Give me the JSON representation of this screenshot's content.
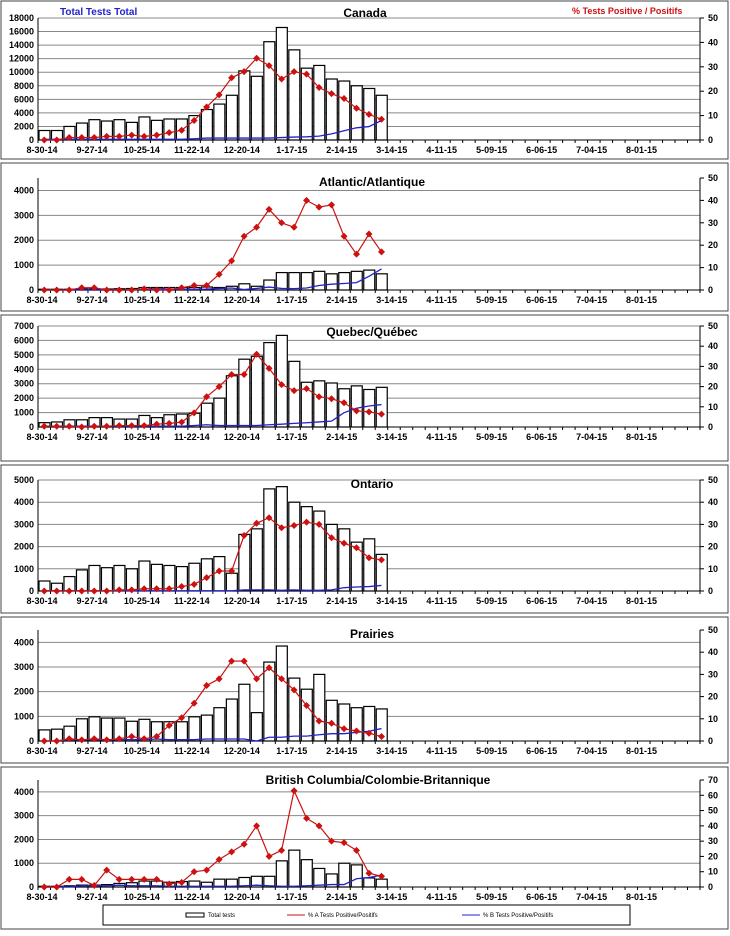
{
  "header": {
    "left_axis_label": "Total Tests Total",
    "right_axis_label": "% Tests Positive / Positifs"
  },
  "colors": {
    "bars": "#ffffff",
    "pct_a": "#cc1111",
    "pct_b": "#2222cc"
  },
  "legend": {
    "total": "Total tests",
    "pct_a": "% A Tests Positive/Positifs",
    "pct_b": "% B Tests Positive/Positifs"
  },
  "chart_data": [
    {
      "type": "bar+line",
      "title": "Canada",
      "x_tick_labels": [
        "8-30-14",
        "9-27-14",
        "10-25-14",
        "11-22-14",
        "12-20-14",
        "1-17-15",
        "2-14-15",
        "3-14-15",
        "4-11-15",
        "5-09-15",
        "6-06-15",
        "7-04-15",
        "8-01-15"
      ],
      "weeks_total": 53,
      "ylim_left": [
        0,
        18000
      ],
      "yticks_left": [
        0,
        2000,
        4000,
        6000,
        8000,
        10000,
        12000,
        14000,
        16000,
        18000
      ],
      "ylim_right": [
        0,
        50
      ],
      "yticks_right": [
        0,
        10,
        20,
        30,
        40,
        50
      ],
      "total_tests": [
        1400,
        1400,
        2000,
        2500,
        3000,
        2800,
        3000,
        2600,
        3400,
        2900,
        3100,
        3100,
        3600,
        4500,
        5300,
        6600,
        10200,
        9400,
        14500,
        16600,
        13300,
        10600,
        11000,
        9000,
        8700,
        8000,
        7600,
        6600
      ],
      "pct_a": [
        0,
        0,
        1,
        1,
        1,
        1.5,
        1.5,
        2,
        1.5,
        2,
        3,
        4,
        8,
        13.5,
        18.5,
        25.5,
        28,
        33.5,
        30.5,
        25,
        28,
        27,
        21.5,
        19,
        17,
        13,
        10.5,
        8.5
      ],
      "pct_b": [
        0.3,
        0.3,
        0.3,
        0.3,
        0.3,
        0.3,
        0.3,
        0.3,
        0.3,
        0.3,
        0.3,
        0.3,
        0.5,
        0.8,
        0.8,
        0.8,
        0.8,
        0.8,
        0.8,
        1,
        1.2,
        1.3,
        1.6,
        2.5,
        3.8,
        5,
        5.5,
        8
      ]
    },
    {
      "type": "bar+line",
      "title": "Atlantic/Atlantique",
      "x_tick_labels": [
        "8-30-14",
        "9-27-14",
        "10-25-14",
        "11-22-14",
        "12-20-14",
        "1-17-15",
        "2-14-15",
        "3-14-15",
        "4-11-15",
        "5-09-15",
        "6-06-15",
        "7-04-15",
        "8-01-15"
      ],
      "weeks_total": 53,
      "ylim_left": [
        0,
        4500
      ],
      "yticks_left": [
        0,
        1000,
        2000,
        3000,
        4000
      ],
      "ylim_right": [
        0,
        50
      ],
      "yticks_right": [
        0,
        10,
        20,
        30,
        40,
        50
      ],
      "total_tests": [
        30,
        30,
        30,
        40,
        40,
        40,
        50,
        60,
        100,
        100,
        100,
        100,
        100,
        120,
        100,
        150,
        250,
        150,
        400,
        700,
        700,
        700,
        750,
        650,
        700,
        750,
        800,
        650
      ],
      "pct_a": [
        0,
        0,
        0,
        1,
        1,
        0,
        0,
        0,
        0.5,
        0,
        0,
        1,
        2,
        2,
        7,
        13,
        24,
        28,
        36,
        30,
        28,
        40,
        37,
        38,
        24,
        16,
        25,
        17
      ],
      "pct_b": [
        0,
        0,
        0,
        0,
        0,
        0,
        0,
        0,
        0.3,
        0.6,
        0.4,
        0.3,
        0.3,
        0.4,
        0.7,
        0.9,
        0.2,
        0.7,
        1.3,
        0.7,
        0.6,
        0.9,
        2,
        2.6,
        2.9,
        3.3,
        6.1,
        9.4
      ]
    },
    {
      "type": "bar+line",
      "title": "Quebec/Québec",
      "x_tick_labels": [
        "8-30-14",
        "9-27-14",
        "10-25-14",
        "11-22-14",
        "12-20-14",
        "1-17-15",
        "2-14-15",
        "3-14-15",
        "4-11-15",
        "5-09-15",
        "6-06-15",
        "7-04-15",
        "8-01-15"
      ],
      "weeks_total": 53,
      "ylim_left": [
        0,
        7000
      ],
      "yticks_left": [
        0,
        1000,
        2000,
        3000,
        4000,
        5000,
        6000,
        7000
      ],
      "ylim_right": [
        0,
        50
      ],
      "yticks_right": [
        0,
        10,
        20,
        30,
        40,
        50
      ],
      "total_tests": [
        300,
        350,
        500,
        500,
        650,
        650,
        550,
        550,
        800,
        650,
        850,
        900,
        950,
        1650,
        2000,
        3550,
        4700,
        4900,
        5850,
        6350,
        4550,
        3100,
        3200,
        3050,
        2650,
        2850,
        2600,
        2750
      ],
      "pct_a": [
        0.4,
        0.4,
        0.4,
        0,
        0.4,
        0.4,
        0.7,
        0.7,
        0.7,
        1.4,
        1.8,
        2.4,
        7,
        15,
        20,
        26,
        26,
        36,
        29,
        21,
        18,
        19,
        15,
        14,
        12,
        8,
        7.5,
        6.4
      ],
      "pct_b": [
        0.4,
        0.4,
        0.4,
        0.4,
        0.4,
        0.4,
        0.4,
        0.4,
        0.4,
        0.4,
        0.4,
        0.4,
        0.7,
        1.1,
        0.7,
        0.7,
        0.7,
        0.7,
        1.1,
        1.4,
        1.8,
        2.1,
        2.5,
        2.9,
        7.1,
        9.3,
        10.4,
        11.1
      ]
    },
    {
      "type": "bar+line",
      "title": "Ontario",
      "x_tick_labels": [
        "8-30-14",
        "9-27-14",
        "10-25-14",
        "11-22-14",
        "12-20-14",
        "1-17-15",
        "2-14-15",
        "3-14-15",
        "4-11-15",
        "5-09-15",
        "6-06-15",
        "7-04-15",
        "8-01-15"
      ],
      "weeks_total": 53,
      "ylim_left": [
        0,
        5000
      ],
      "yticks_left": [
        0,
        1000,
        2000,
        3000,
        4000,
        5000
      ],
      "ylim_right": [
        0,
        50
      ],
      "yticks_right": [
        0,
        10,
        20,
        30,
        40,
        50
      ],
      "total_tests": [
        450,
        350,
        650,
        950,
        1150,
        1050,
        1150,
        1000,
        1350,
        1200,
        1150,
        1100,
        1250,
        1450,
        1550,
        800,
        2550,
        2800,
        4600,
        4700,
        4000,
        3800,
        3600,
        3000,
        2800,
        2200,
        2350,
        1650
      ],
      "pct_a": [
        0,
        0,
        0,
        0,
        0,
        0,
        0.5,
        0.5,
        1,
        1,
        1,
        2,
        3,
        6,
        9,
        9,
        25,
        30.5,
        33,
        28.5,
        29.5,
        31,
        30,
        24,
        21.5,
        19.5,
        15,
        14
      ],
      "pct_b": [
        0.1,
        0.1,
        0.1,
        0.1,
        0.1,
        0.1,
        0.1,
        0.1,
        0.1,
        0.1,
        0.1,
        0.1,
        0.1,
        0.1,
        0.1,
        0.1,
        0.5,
        0.5,
        0.5,
        0.3,
        0.5,
        0.3,
        0.3,
        0.5,
        1.5,
        1.8,
        2,
        2.5
      ]
    },
    {
      "type": "bar+line",
      "title": "Prairies",
      "x_tick_labels": [
        "8-30-14",
        "9-27-14",
        "10-25-14",
        "11-22-14",
        "12-20-14",
        "1-17-15",
        "2-14-15",
        "3-14-15",
        "4-11-15",
        "5-09-15",
        "6-06-15",
        "7-04-15",
        "8-01-15"
      ],
      "weeks_total": 53,
      "ylim_left": [
        0,
        4500
      ],
      "yticks_left": [
        0,
        1000,
        2000,
        3000,
        4000
      ],
      "ylim_right": [
        0,
        50
      ],
      "yticks_right": [
        0,
        10,
        20,
        30,
        40,
        50
      ],
      "total_tests": [
        450,
        480,
        600,
        900,
        980,
        930,
        930,
        800,
        880,
        780,
        780,
        780,
        980,
        1050,
        1350,
        1700,
        2300,
        1150,
        3200,
        3850,
        2550,
        2100,
        2700,
        1650,
        1500,
        1350,
        1400,
        1300
      ],
      "pct_a": [
        0,
        0,
        1,
        0.5,
        1,
        0.5,
        1,
        2,
        1,
        2,
        7,
        10.5,
        17,
        25,
        28,
        36,
        36,
        28,
        33,
        28,
        23,
        16,
        9,
        8,
        5.5,
        4.5,
        3.5,
        2
      ],
      "pct_b": [
        0,
        0,
        0.6,
        0.6,
        0.6,
        0.6,
        0.6,
        0.6,
        0.6,
        0.9,
        0.6,
        0.6,
        0.6,
        0.9,
        0.9,
        0.9,
        0.9,
        0,
        1.7,
        1.7,
        2.2,
        2.2,
        2.8,
        3.3,
        3.3,
        3.9,
        4.4,
        5.6
      ]
    },
    {
      "type": "bar+line",
      "title": "British Columbia/Colombie-Britannique",
      "x_tick_labels": [
        "8-30-14",
        "9-27-14",
        "10-25-14",
        "11-22-14",
        "12-20-14",
        "1-17-15",
        "2-14-15",
        "3-14-15",
        "4-11-15",
        "5-09-15",
        "6-06-15",
        "7-04-15",
        "8-01-15"
      ],
      "weeks_total": 53,
      "ylim_left": [
        0,
        4500
      ],
      "yticks_left": [
        0,
        1000,
        2000,
        3000,
        4000
      ],
      "ylim_right": [
        0,
        70
      ],
      "yticks_right": [
        0,
        10,
        20,
        30,
        40,
        50,
        60,
        70
      ],
      "total_tests": [
        30,
        30,
        50,
        80,
        80,
        100,
        150,
        180,
        250,
        250,
        200,
        230,
        250,
        200,
        330,
        330,
        400,
        450,
        450,
        1100,
        1550,
        1150,
        780,
        550,
        1000,
        930,
        380,
        330
      ],
      "pct_a": [
        0,
        0,
        5,
        5,
        1,
        11,
        5,
        5,
        5,
        5,
        2,
        3,
        10,
        11,
        18,
        23,
        28,
        40,
        20,
        24,
        63,
        45,
        40,
        30,
        29,
        24,
        9,
        7
      ],
      "pct_b": [
        0,
        0,
        0,
        0.8,
        0.8,
        0.8,
        1.2,
        0.8,
        0.8,
        0.8,
        0.5,
        0.5,
        0.5,
        0.5,
        0.5,
        0.5,
        0.8,
        1.2,
        0.8,
        0.5,
        0.5,
        0.8,
        1.2,
        1.6,
        1.6,
        5.4,
        6.2,
        7.8
      ]
    }
  ]
}
